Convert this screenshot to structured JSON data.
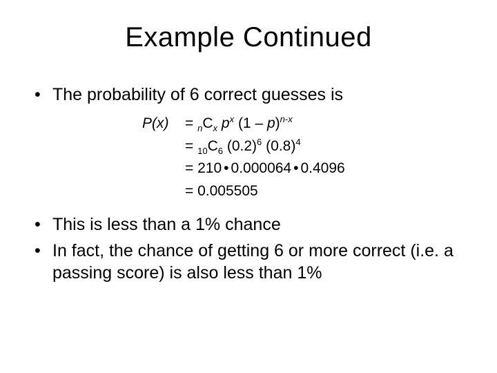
{
  "slide": {
    "background_color": "#ffffff",
    "text_color": "#000000",
    "title_fontsize": 40,
    "body_fontsize": 25,
    "math_fontsize": 21,
    "font_family": "Arial"
  },
  "title": "Example Continued",
  "bullets": {
    "b1": "The probability of 6 correct guesses is",
    "b2": "This is less than a 1% chance",
    "b3": "In fact, the chance of getting 6 or more correct (i.e. a passing score) is also less than 1%"
  },
  "math": {
    "lhs_P": "P",
    "lhs_x": "x",
    "eq": "=",
    "line1": {
      "pre_n": "n",
      "C": "C",
      "sub_x": "x",
      "p": "p",
      "sup_x": "x",
      "open": "(1 – ",
      "p2": "p",
      "close": ")",
      "n": "n",
      "dash": "-",
      "x": "x"
    },
    "line2": {
      "pre_10": "10",
      "C": "C",
      "sub_6": "6",
      "v1": "(0.2)",
      "e1": "6",
      "v2": "(0.8)",
      "e2": "4"
    },
    "line3": {
      "a": "210",
      "b": "0.000064",
      "c": "0.4096"
    },
    "line4": {
      "result": "0.005505"
    }
  }
}
